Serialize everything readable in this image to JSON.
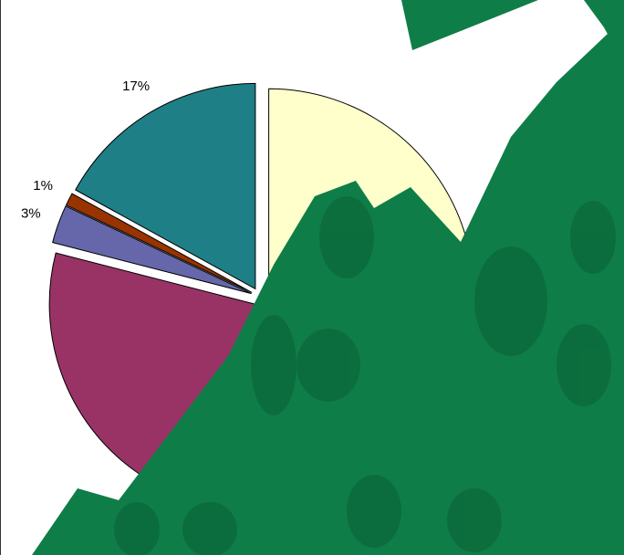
{
  "chart_data": {
    "type": "pie",
    "values": [
      41,
      38,
      3,
      1,
      17
    ],
    "value_labels": [
      null,
      null,
      "3%",
      "1%",
      "17%"
    ],
    "colors": [
      "#ffffcc",
      "#993366",
      "#6666aa",
      "#993300",
      "#1f7f86"
    ]
  }
}
